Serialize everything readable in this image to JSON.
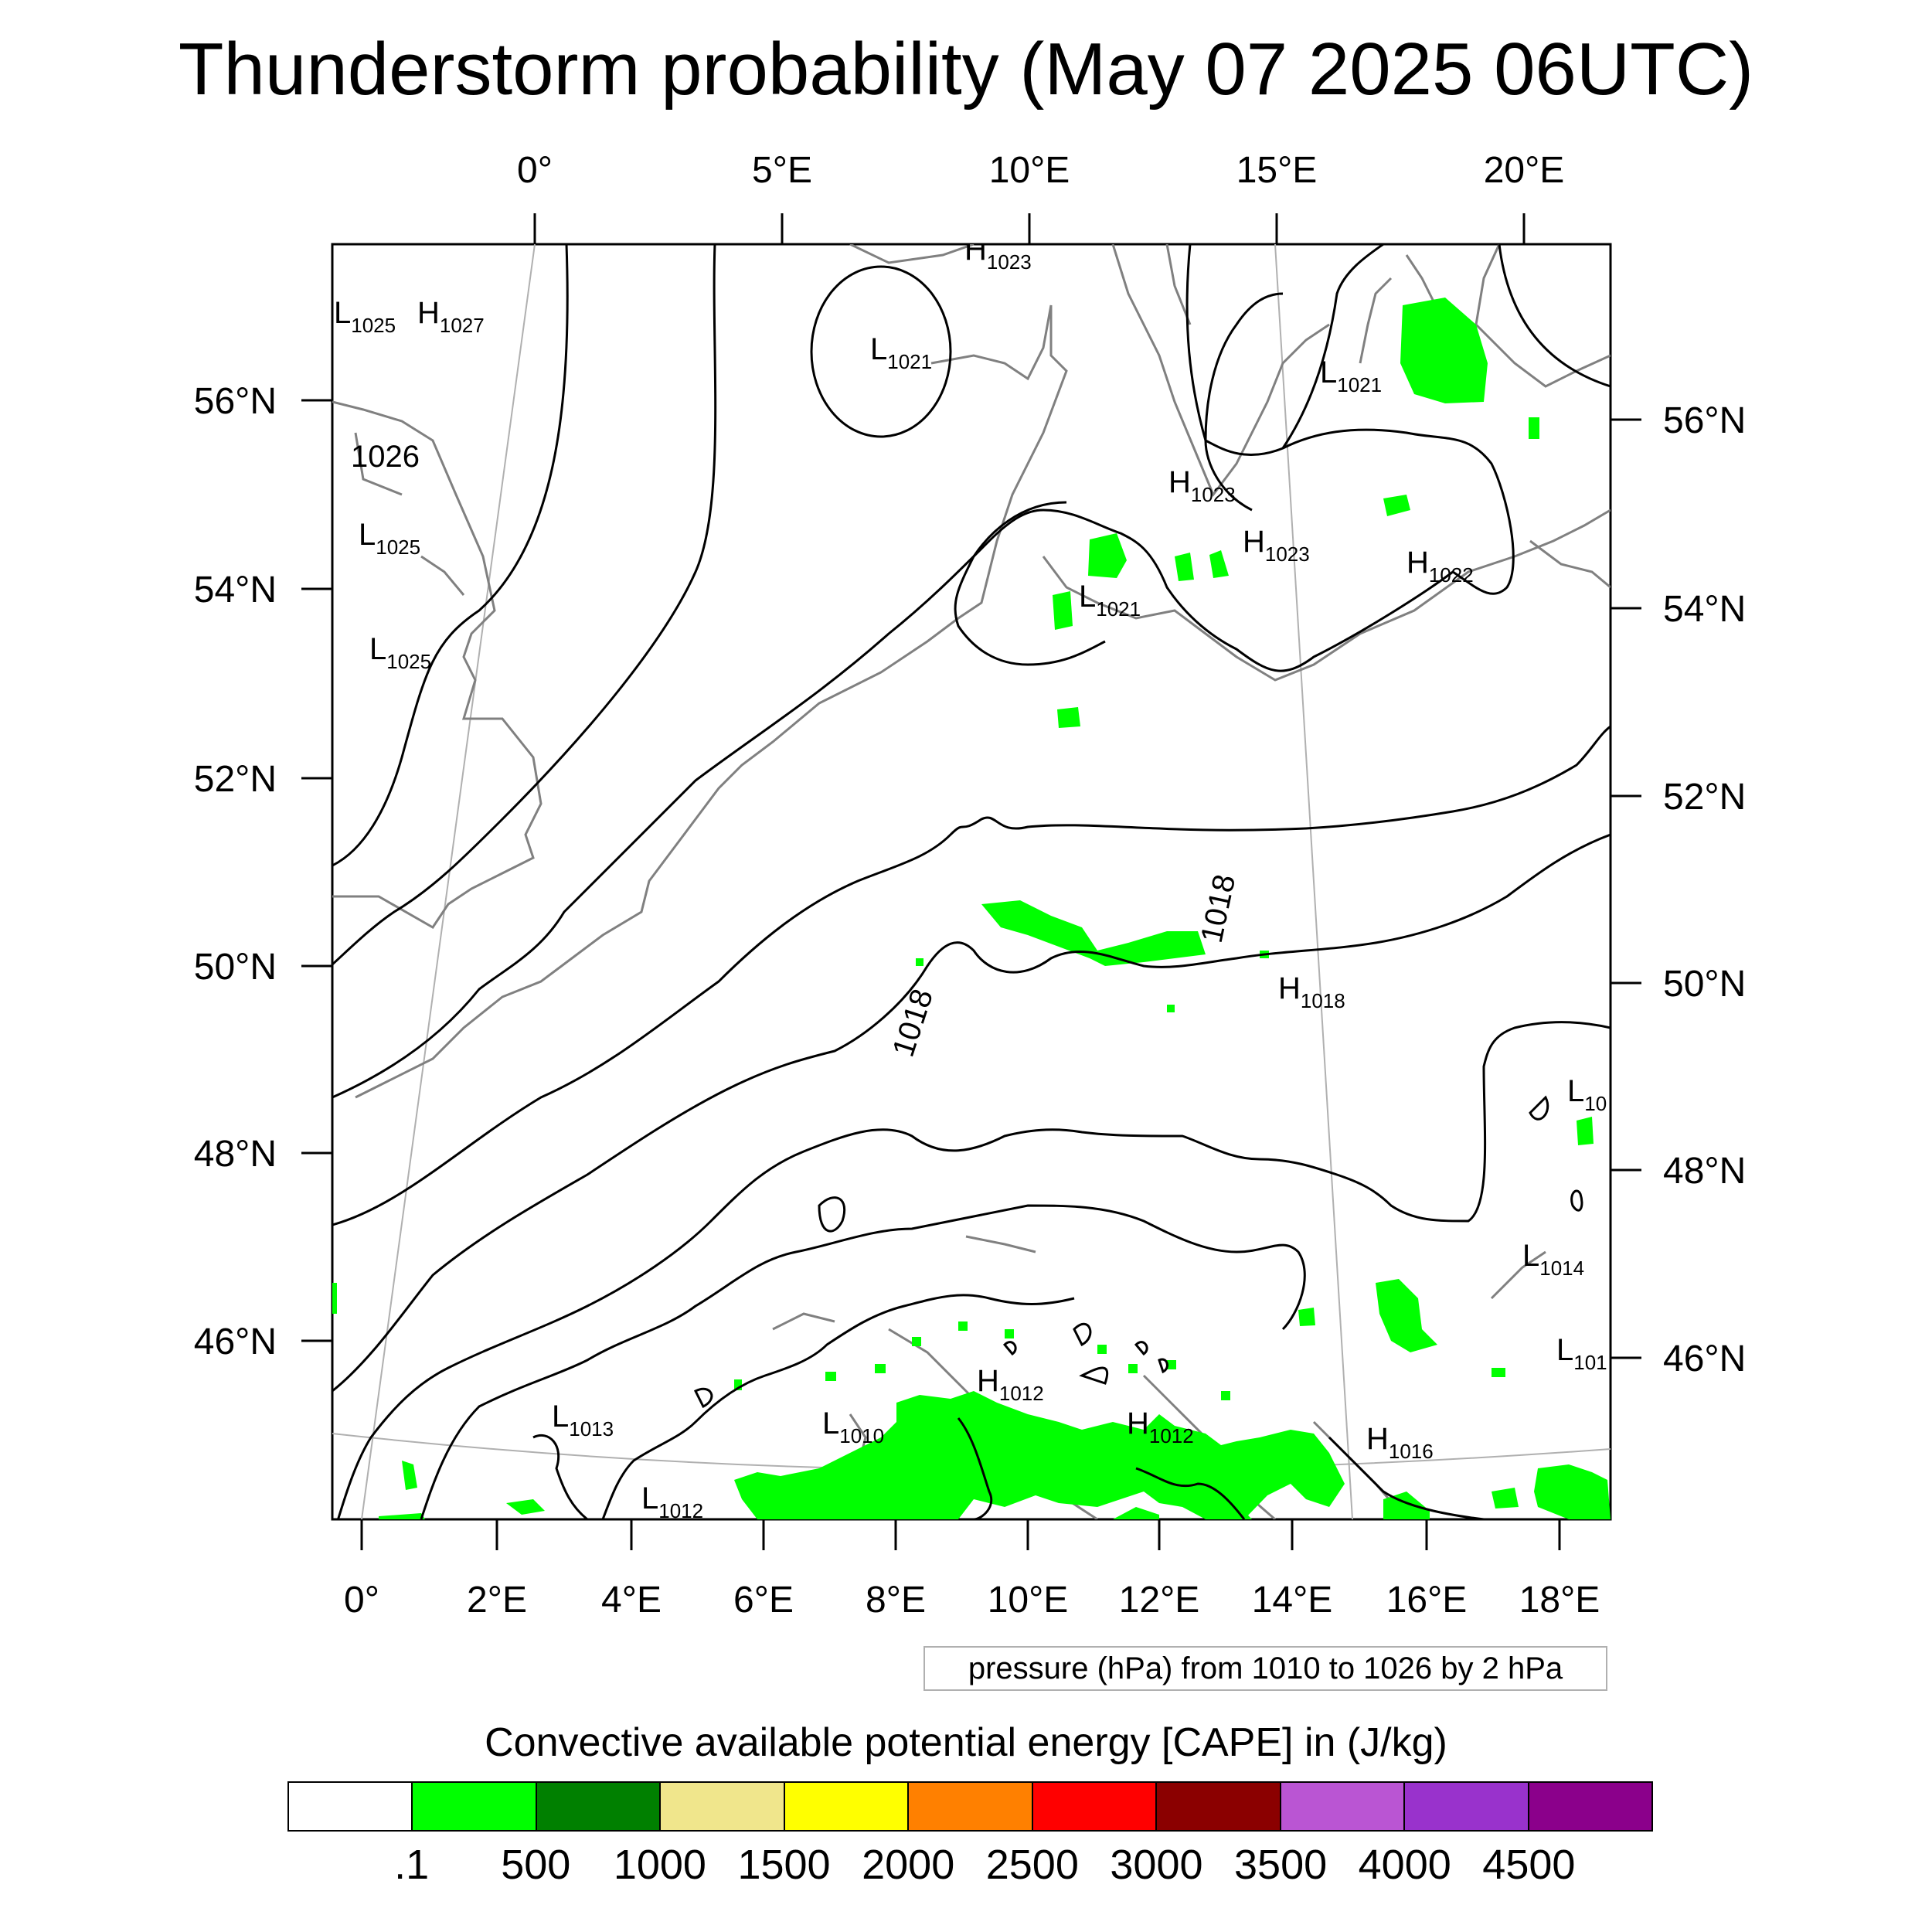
{
  "title": "Thunderstorm probability (May 07 2025 06UTC)",
  "map": {
    "top_lon_labels": [
      "0°",
      "5°E",
      "10°E",
      "15°E",
      "20°E"
    ],
    "bottom_lon_labels": [
      "0°",
      "2°E",
      "4°E",
      "6°E",
      "8°E",
      "10°E",
      "12°E",
      "14°E",
      "16°E",
      "18°E"
    ],
    "left_lat_labels": [
      "56°N",
      "54°N",
      "52°N",
      "50°N",
      "48°N",
      "46°N"
    ],
    "right_lat_labels": [
      "56°N",
      "54°N",
      "52°N",
      "50°N",
      "48°N",
      "46°N"
    ],
    "pressure_centers": [
      {
        "type": "L",
        "value": "1025"
      },
      {
        "type": "H",
        "value": "1027"
      },
      {
        "type": "H",
        "value": "1023"
      },
      {
        "type": "L",
        "value": "1021"
      },
      {
        "type": "L",
        "value": "1021"
      },
      {
        "type": "L",
        "value": "1025"
      },
      {
        "type": "L",
        "value": "1025"
      },
      {
        "type": "H",
        "value": "1023"
      },
      {
        "type": "H",
        "value": "1023"
      },
      {
        "type": "H",
        "value": "1022"
      },
      {
        "type": "L",
        "value": "1021"
      },
      {
        "type": "H",
        "value": "1018"
      },
      {
        "type": "L",
        "value": "10"
      },
      {
        "type": "L",
        "value": "1014"
      },
      {
        "type": "L",
        "value": "101"
      },
      {
        "type": "H",
        "value": "1012"
      },
      {
        "type": "H",
        "value": "1012"
      },
      {
        "type": "H",
        "value": "1016"
      },
      {
        "type": "L",
        "value": "1013"
      },
      {
        "type": "L",
        "value": "1010"
      },
      {
        "type": "L",
        "value": "1012"
      }
    ],
    "contour_labels": [
      "1026",
      "1018",
      "1018"
    ],
    "colors": {
      "cape_green": "#00ff00",
      "coast": "#808080",
      "isobar": "#000000"
    }
  },
  "info_box": "pressure (hPa) from 1010 to 1026 by 2 hPa",
  "colorbar": {
    "title": "Convective available potential energy [CAPE] in (J/kg)",
    "colors": [
      "#ffffff",
      "#00ff00",
      "#008000",
      "#f0e68c",
      "#ffff00",
      "#ff8000",
      "#ff0000",
      "#8b0000",
      "#ba55d3",
      "#9932cc",
      "#8b008b"
    ],
    "labels": [
      ".1",
      "500",
      "1000",
      "1500",
      "2000",
      "2500",
      "3000",
      "3500",
      "4000",
      "4500"
    ]
  }
}
